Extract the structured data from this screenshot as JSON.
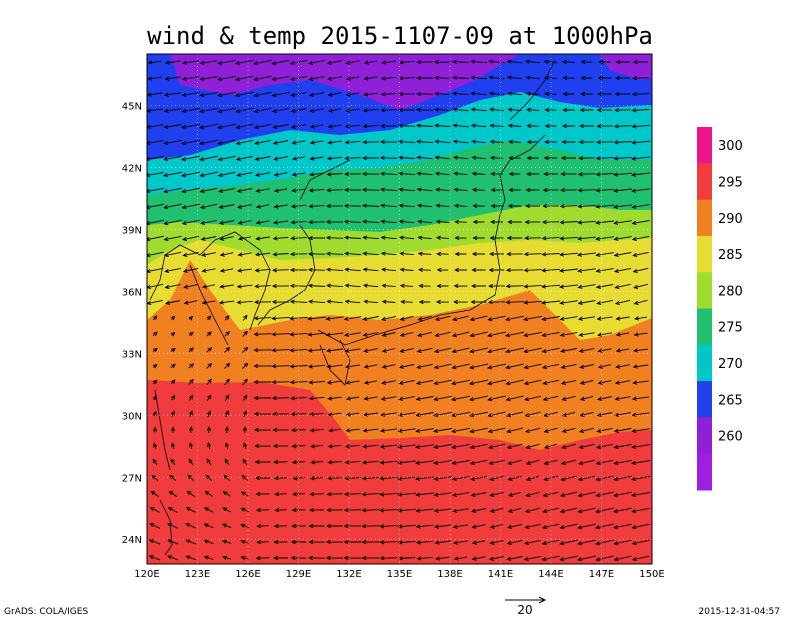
{
  "title": "wind & temp 2015-1107-09 at 1000hPa",
  "footer": {
    "left": "GrADS: COLA/IGES",
    "right": "2015-12-31-04:57"
  },
  "reference_vector": {
    "label": "20"
  },
  "map": {
    "lon_labels": [
      "120E",
      "123E",
      "126E",
      "129E",
      "132E",
      "135E",
      "138E",
      "141E",
      "144E",
      "147E",
      "150E"
    ],
    "lat_labels": [
      "45N",
      "42N",
      "39N",
      "36N",
      "33N",
      "30N",
      "27N",
      "24N"
    ],
    "lon_range": [
      120,
      150
    ],
    "lat_range": [
      22.8,
      47.5
    ],
    "grid": "dotted"
  },
  "colorbar": {
    "labels": [
      "260",
      "265",
      "270",
      "275",
      "280",
      "285",
      "290",
      "295",
      "300"
    ],
    "colors": [
      "#a01ee0",
      "#9020d8",
      "#2040f0",
      "#00c8c8",
      "#20c070",
      "#a0dc30",
      "#e6dc32",
      "#f08020",
      "#f03c3c",
      "#f0148c"
    ]
  },
  "temperature_bands": [
    {
      "name": "T<265",
      "color": "#9020d8"
    },
    {
      "name": "265-270",
      "color": "#2040f0"
    },
    {
      "name": "270-275",
      "color": "#00c8c8"
    },
    {
      "name": "275-280",
      "color": "#20c070"
    },
    {
      "name": "280-285",
      "color": "#a0dc30"
    },
    {
      "name": "285-290",
      "color": "#e6dc32"
    },
    {
      "name": "290-295",
      "color": "#f08020"
    },
    {
      "name": "295-300",
      "color": "#f03c3c"
    }
  ]
}
